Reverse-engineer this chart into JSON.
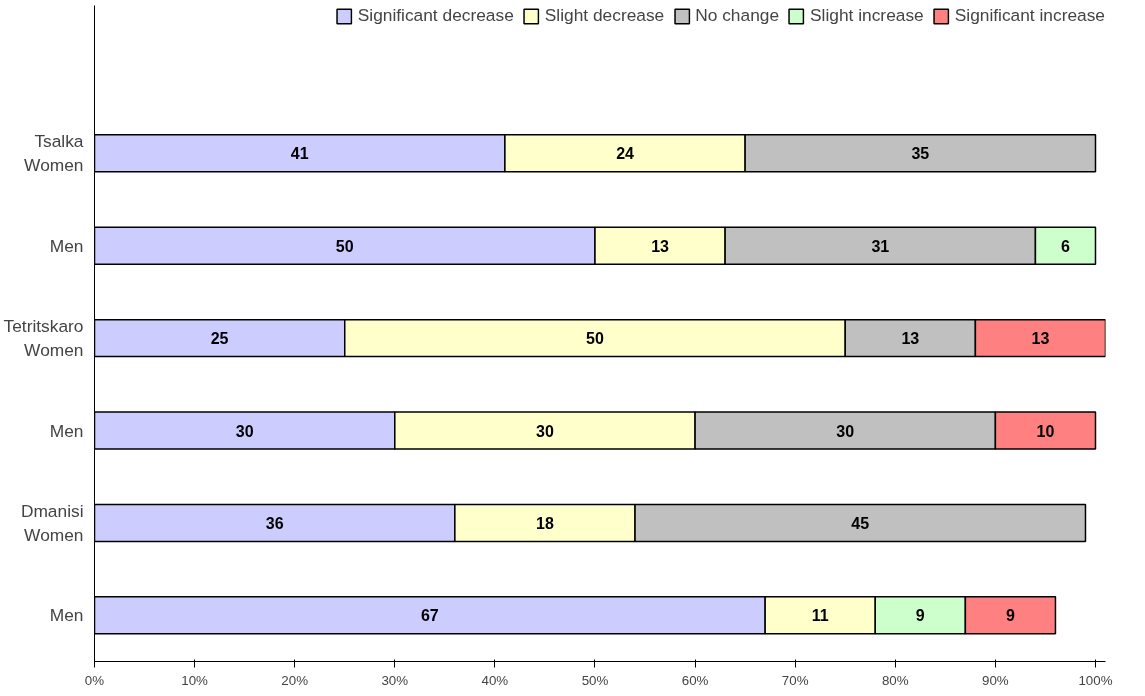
{
  "chart_data": {
    "type": "bar",
    "orientation": "horizontal",
    "stacked": true,
    "categories": [
      "Tsalka\nWomen",
      "Men",
      "Tetritskaro\nWomen",
      "Men",
      "Dmanisi\nWomen",
      "Men"
    ],
    "series": [
      {
        "name": "Significant decrease",
        "color": "#ccccff",
        "values": [
          41,
          50,
          25,
          30,
          36,
          67
        ]
      },
      {
        "name": "Slight decrease",
        "color": "#ffffcc",
        "values": [
          24,
          13,
          50,
          30,
          18,
          11
        ]
      },
      {
        "name": "No change",
        "color": "#c0c0c0",
        "values": [
          35,
          31,
          13,
          30,
          45,
          null
        ]
      },
      {
        "name": "Slight increase",
        "color": "#ccffcc",
        "values": [
          null,
          6,
          null,
          null,
          null,
          9
        ]
      },
      {
        "name": "Significant increase",
        "color": "#ff8080",
        "values": [
          null,
          null,
          13,
          10,
          null,
          9
        ]
      }
    ],
    "data_labels": true,
    "xlim": [
      0,
      101
    ],
    "xticks": [
      {
        "value": 0,
        "label": "0%"
      },
      {
        "value": 10,
        "label": "10%"
      },
      {
        "value": 20,
        "label": "20%"
      },
      {
        "value": 30,
        "label": "30%"
      },
      {
        "value": 40,
        "label": "40%"
      },
      {
        "value": 50,
        "label": "50%"
      },
      {
        "value": 60,
        "label": "60%"
      },
      {
        "value": 70,
        "label": "70%"
      },
      {
        "value": 80,
        "label": "80%"
      },
      {
        "value": 90,
        "label": "90%"
      },
      {
        "value": 100,
        "label": "100%"
      }
    ],
    "grid": false,
    "legend": "top right"
  }
}
